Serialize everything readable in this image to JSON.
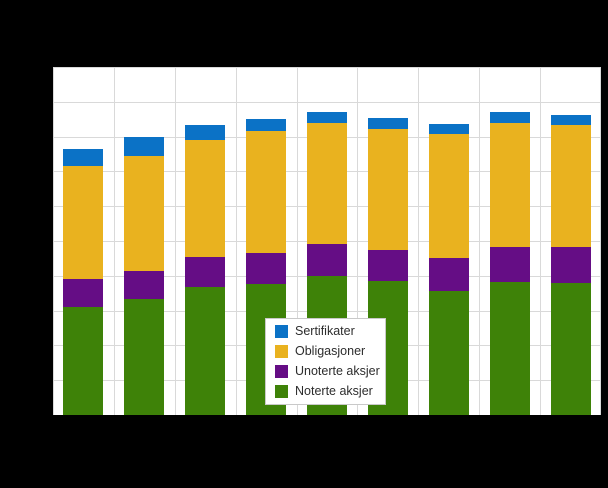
{
  "window": {
    "background_color": "#000000",
    "title": ""
  },
  "plot": {
    "background_color": "#ffffff",
    "gridline_color": "#d9d9d9"
  },
  "chart_data": {
    "type": "bar",
    "stacked": true,
    "title": "",
    "xlabel": "",
    "ylabel": "",
    "categories": [
      "",
      "",
      "",
      "",
      "",
      "",
      "",
      "",
      ""
    ],
    "series": [
      {
        "name": "Noterte aksjer",
        "color": "#3e8208",
        "values": [
          31.0,
          33.3,
          36.8,
          37.6,
          39.9,
          38.5,
          35.6,
          38.2,
          37.9
        ]
      },
      {
        "name": "Unoterte aksjer",
        "color": "#650d85",
        "values": [
          8.1,
          8.1,
          8.6,
          8.9,
          9.2,
          8.9,
          9.5,
          10.1,
          10.3
        ]
      },
      {
        "name": "Obligasjoner",
        "color": "#e9b21f",
        "values": [
          32.5,
          33.0,
          33.6,
          35.1,
          34.8,
          34.8,
          35.6,
          35.6,
          35.2
        ]
      },
      {
        "name": "Sertifikater",
        "color": "#0b72c6",
        "values": [
          4.9,
          5.5,
          4.3,
          3.4,
          3.2,
          3.2,
          2.9,
          3.2,
          2.9
        ]
      }
    ],
    "ylim": [
      0,
      100
    ],
    "y_gridline_step": 10,
    "x_slots": 9,
    "grid": true,
    "legend_position": "inside-bottom-center"
  },
  "legend": {
    "items": [
      {
        "label": "Sertifikater",
        "color": "#0b72c6"
      },
      {
        "label": "Obligasjoner",
        "color": "#e9b21f"
      },
      {
        "label": "Unoterte aksjer",
        "color": "#650d85"
      },
      {
        "label": "Noterte aksjer",
        "color": "#3e8208"
      }
    ]
  }
}
